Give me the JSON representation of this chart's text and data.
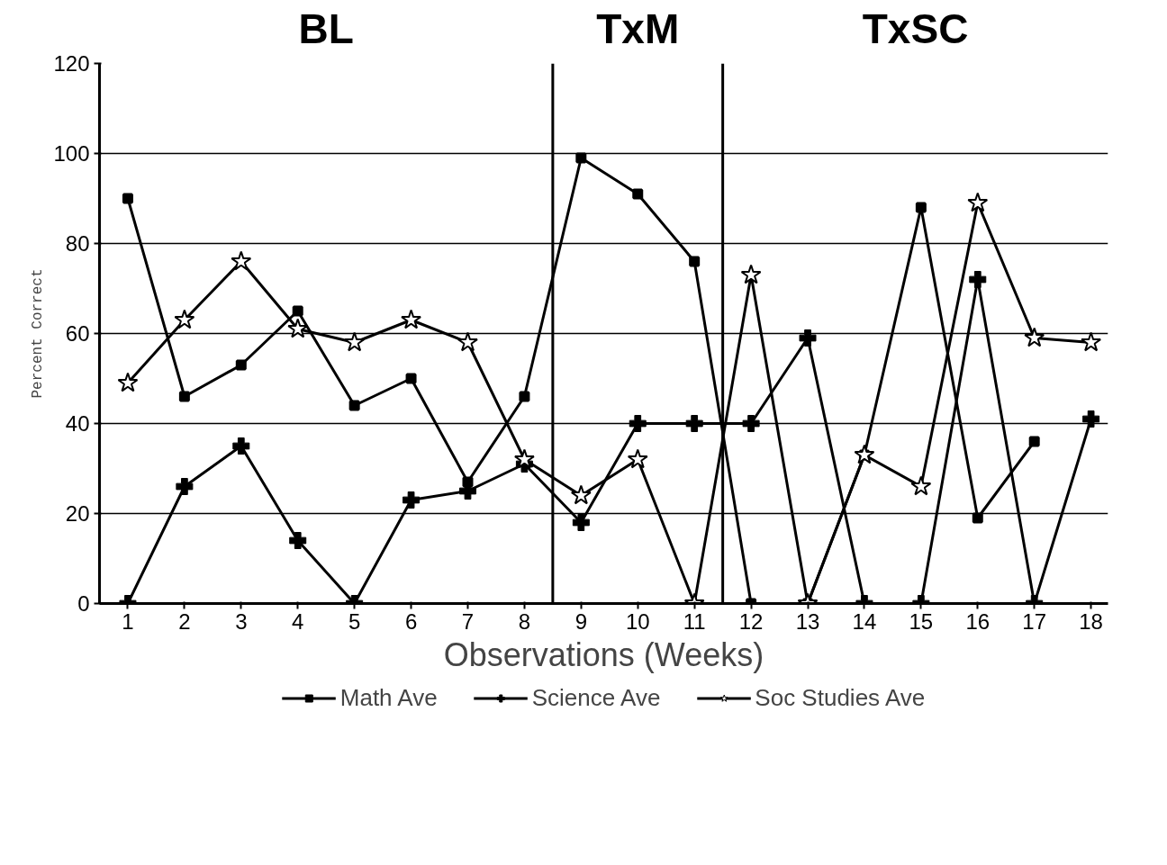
{
  "chart_data": {
    "type": "line",
    "xlabel": "Observations (Weeks)",
    "ylabel": "Percent Correct",
    "x": [
      1,
      2,
      3,
      4,
      5,
      6,
      7,
      8,
      9,
      10,
      11,
      12,
      13,
      14,
      15,
      16,
      17,
      18
    ],
    "xlim": [
      0.5,
      18.3
    ],
    "xticks": [
      1,
      2,
      3,
      4,
      5,
      6,
      7,
      8,
      9,
      10,
      11,
      12,
      13,
      14,
      15,
      16,
      17,
      18
    ],
    "ylim": [
      0,
      120
    ],
    "yticks": [
      0,
      20,
      40,
      60,
      80,
      100,
      120
    ],
    "grid": "y",
    "legend": "bottom",
    "annotations": [
      "BL",
      "TxM",
      "TxSC"
    ],
    "ref_lines": [
      {
        "axis": "x",
        "value": 8.5,
        "color": "#000000"
      },
      {
        "axis": "x",
        "value": 11.5,
        "color": "#000000"
      }
    ],
    "series": [
      {
        "name": "Math Ave",
        "color": "#000000",
        "marker": "square",
        "values": [
          90,
          46,
          53,
          65,
          44,
          50,
          27,
          46,
          99,
          91,
          76,
          0,
          0,
          33,
          88,
          19,
          36,
          null
        ]
      },
      {
        "name": "Science Ave",
        "color": "#000000",
        "marker": "cross",
        "values": [
          0,
          26,
          35,
          14,
          0,
          23,
          25,
          31,
          18,
          40,
          40,
          40,
          59,
          0,
          0,
          72,
          0,
          41
        ]
      },
      {
        "name": "Soc Studies Ave",
        "color": "#000000",
        "marker": "star",
        "values": [
          49,
          63,
          76,
          61,
          58,
          63,
          58,
          32,
          24,
          32,
          0,
          73,
          0,
          33,
          26,
          89,
          59,
          58
        ]
      }
    ]
  }
}
